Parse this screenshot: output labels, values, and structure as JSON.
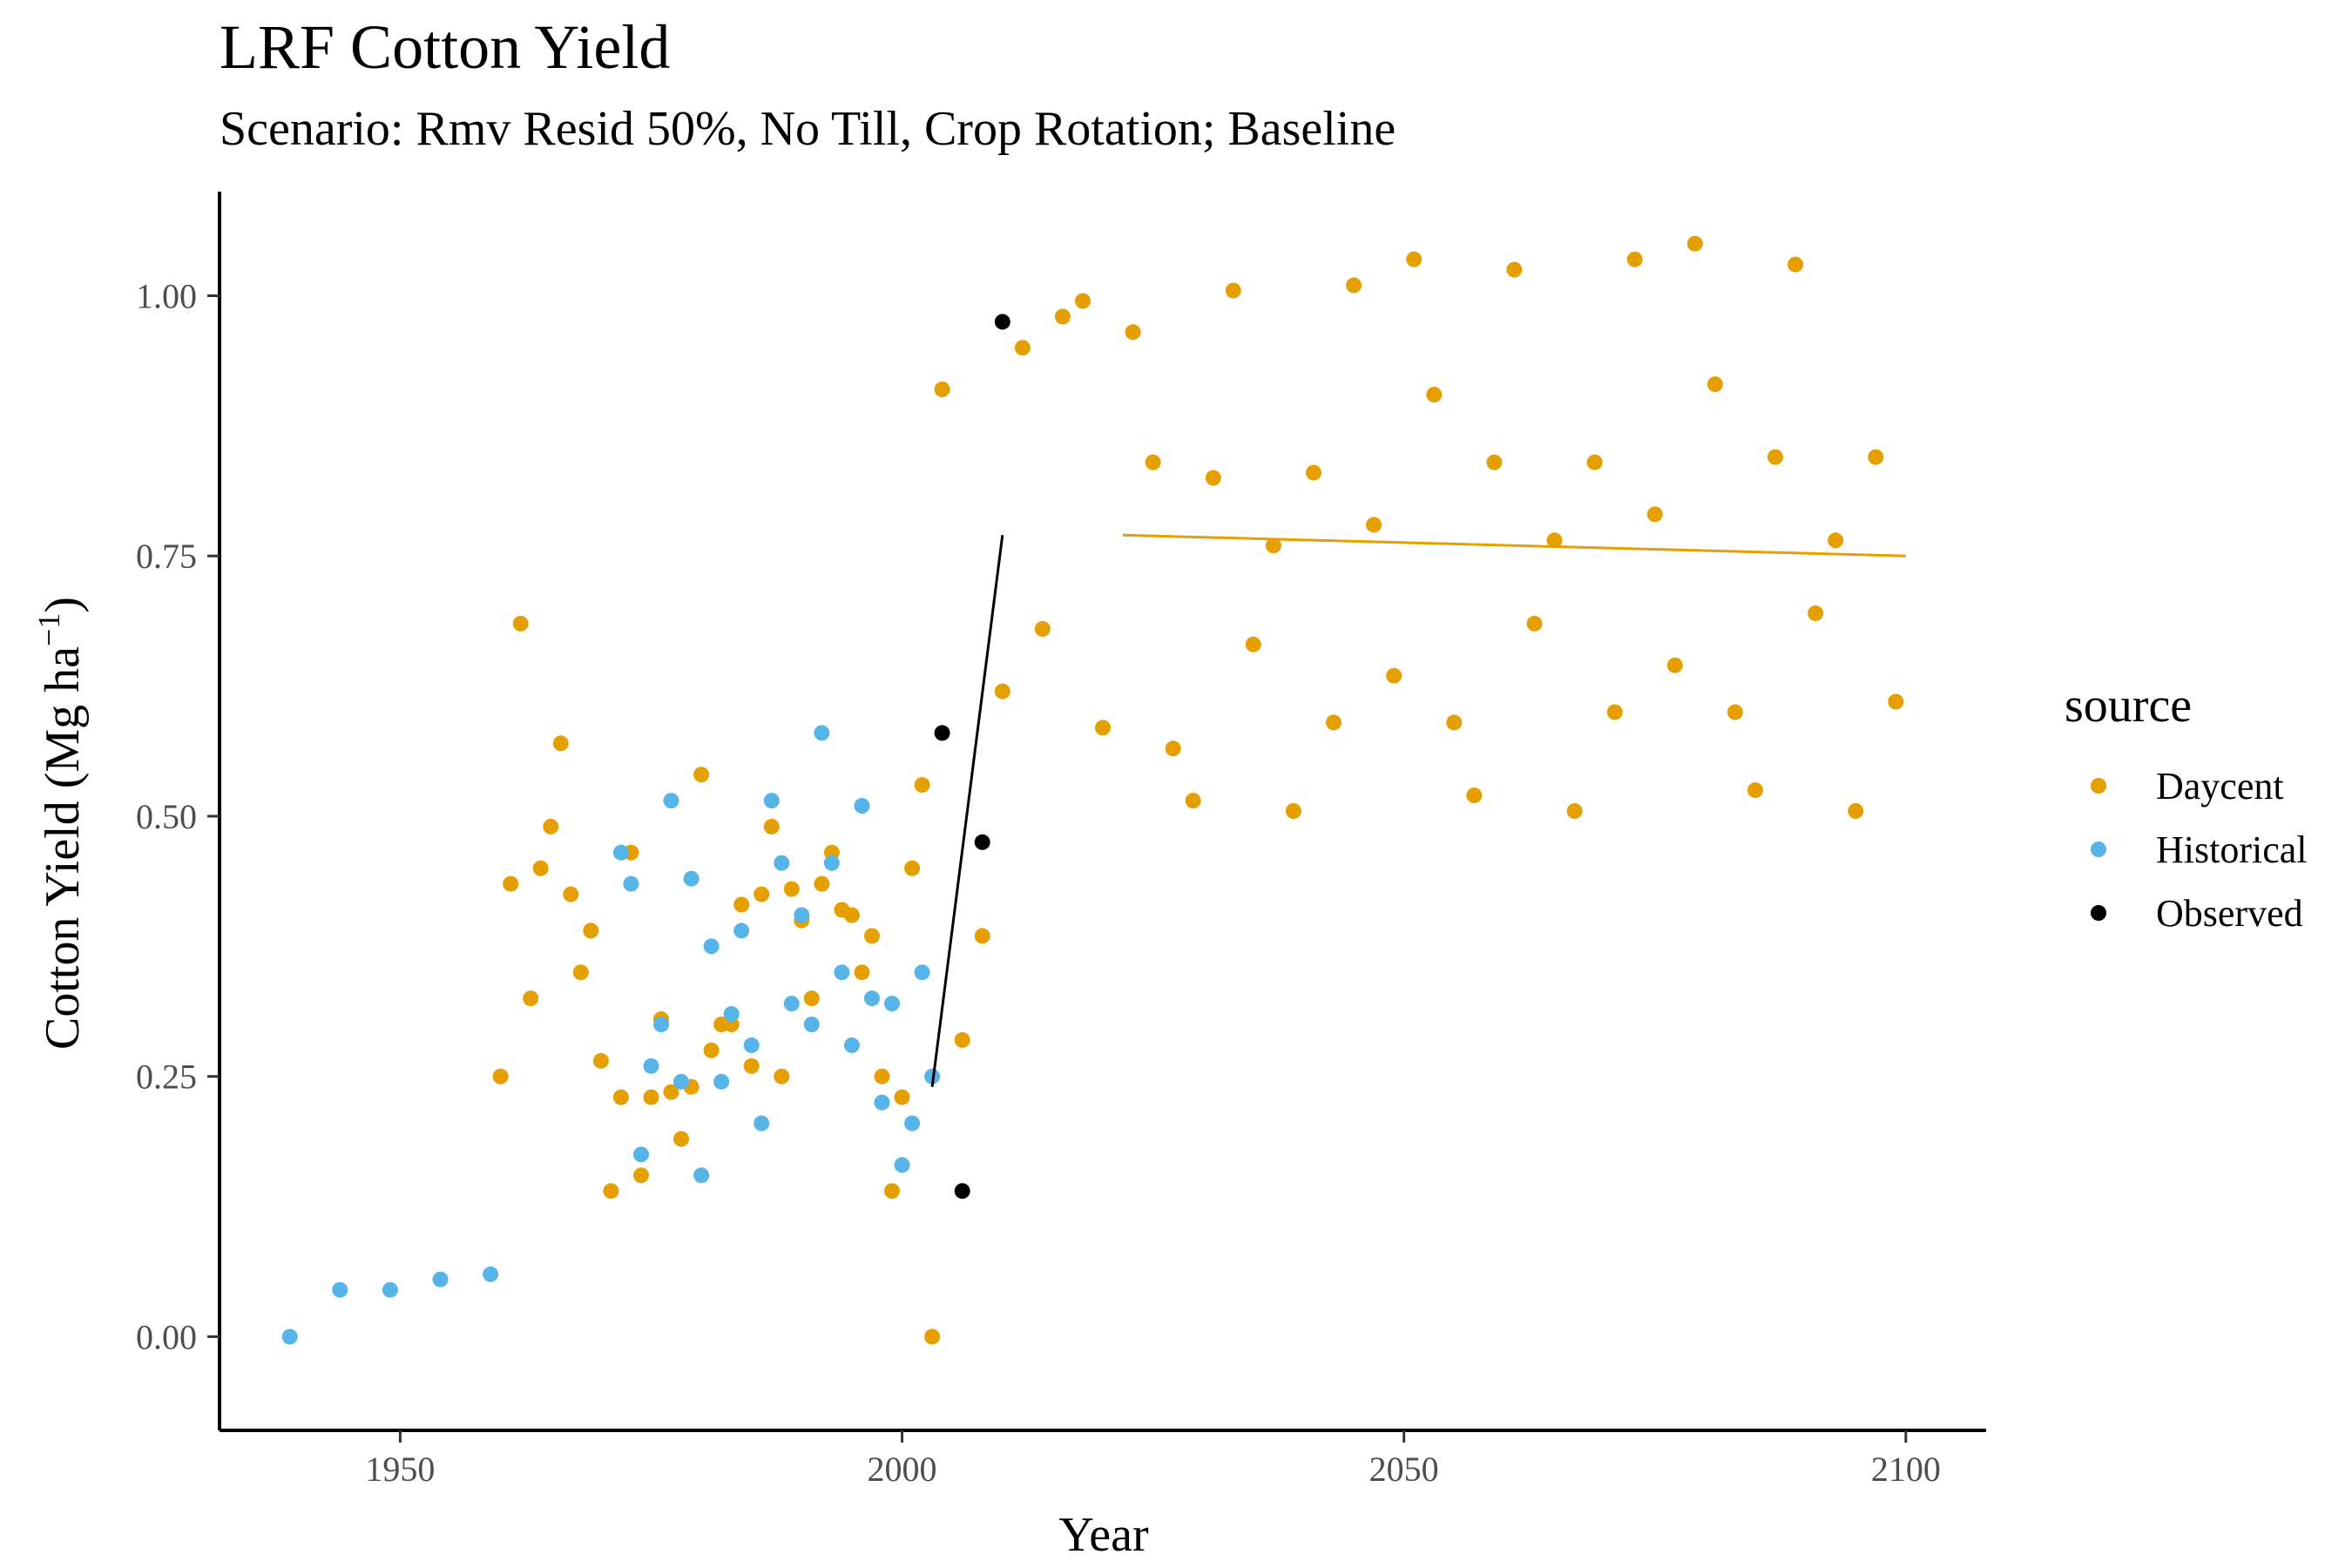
{
  "chart_data": {
    "type": "scatter",
    "title": "LRF Cotton Yield",
    "subtitle": "Scenario: Rmv Resid 50%, No Till, Crop Rotation; Baseline",
    "xlabel": "Year",
    "ylabel_main": "Cotton Yield (Mg ha",
    "ylabel_sup": "−1",
    "ylabel_close": ")",
    "xlim": [
      1932,
      2108
    ],
    "ylim": [
      -0.09,
      1.1
    ],
    "xticks": [
      1950,
      2000,
      2050,
      2100
    ],
    "xtick_labels": [
      "1950",
      "2000",
      "2050",
      "2100"
    ],
    "yticks": [
      0,
      0.25,
      0.5,
      0.75,
      1
    ],
    "ytick_labels": [
      "0.00",
      "0.25",
      "0.50",
      "0.75",
      "1.00"
    ],
    "grid": false,
    "legend": {
      "title": "source",
      "placement": "right",
      "entries": [
        "Daycent",
        "Historical",
        "Observed"
      ]
    },
    "series": [
      {
        "name": "Daycent",
        "color": "#E69F00",
        "points": [
          [
            1960,
            0.25
          ],
          [
            1961,
            0.435
          ],
          [
            1962,
            0.685
          ],
          [
            1963,
            0.325
          ],
          [
            1964,
            0.45
          ],
          [
            1965,
            0.49
          ],
          [
            1966,
            0.57
          ],
          [
            1967,
            0.425
          ],
          [
            1968,
            0.35
          ],
          [
            1969,
            0.39
          ],
          [
            1970,
            0.265
          ],
          [
            1971,
            0.14
          ],
          [
            1972,
            0.23
          ],
          [
            1973,
            0.465
          ],
          [
            1974,
            0.155
          ],
          [
            1975,
            0.23
          ],
          [
            1976,
            0.305
          ],
          [
            1977,
            0.235
          ],
          [
            1978,
            0.19
          ],
          [
            1979,
            0.24
          ],
          [
            1980,
            0.54
          ],
          [
            1981,
            0.275
          ],
          [
            1982,
            0.3
          ],
          [
            1983,
            0.3
          ],
          [
            1984,
            0.415
          ],
          [
            1985,
            0.26
          ],
          [
            1986,
            0.425
          ],
          [
            1987,
            0.49
          ],
          [
            1988,
            0.25
          ],
          [
            1989,
            0.43
          ],
          [
            1990,
            0.4
          ],
          [
            1991,
            0.325
          ],
          [
            1992,
            0.435
          ],
          [
            1993,
            0.465
          ],
          [
            1994,
            0.41
          ],
          [
            1995,
            0.405
          ],
          [
            1996,
            0.35
          ],
          [
            1997,
            0.385
          ],
          [
            1998,
            0.25
          ],
          [
            1999,
            0.14
          ],
          [
            2000,
            0.23
          ],
          [
            2001,
            0.45
          ],
          [
            2002,
            0.53
          ],
          [
            2003,
            0.0
          ],
          [
            2004,
            0.91
          ],
          [
            2006,
            0.285
          ],
          [
            2008,
            0.385
          ],
          [
            2010,
            0.62
          ],
          [
            2012,
            0.95
          ],
          [
            2014,
            0.68
          ],
          [
            2016,
            0.98
          ],
          [
            2018,
            0.995
          ],
          [
            2020,
            0.585
          ],
          [
            2023,
            0.965
          ],
          [
            2025,
            0.84
          ],
          [
            2027,
            0.565
          ],
          [
            2029,
            0.515
          ],
          [
            2031,
            0.825
          ],
          [
            2033,
            1.005
          ],
          [
            2035,
            0.665
          ],
          [
            2037,
            0.76
          ],
          [
            2039,
            0.505
          ],
          [
            2041,
            0.83
          ],
          [
            2043,
            0.59
          ],
          [
            2045,
            1.01
          ],
          [
            2047,
            0.78
          ],
          [
            2049,
            0.635
          ],
          [
            2051,
            1.035
          ],
          [
            2053,
            0.905
          ],
          [
            2055,
            0.59
          ],
          [
            2057,
            0.52
          ],
          [
            2059,
            0.84
          ],
          [
            2061,
            1.025
          ],
          [
            2063,
            0.685
          ],
          [
            2065,
            0.765
          ],
          [
            2067,
            0.505
          ],
          [
            2069,
            0.84
          ],
          [
            2071,
            0.6
          ],
          [
            2073,
            1.035
          ],
          [
            2075,
            0.79
          ],
          [
            2077,
            0.645
          ],
          [
            2079,
            1.05
          ],
          [
            2081,
            0.915
          ],
          [
            2083,
            0.6
          ],
          [
            2085,
            0.525
          ],
          [
            2087,
            0.845
          ],
          [
            2089,
            1.03
          ],
          [
            2091,
            0.695
          ],
          [
            2093,
            0.765
          ],
          [
            2095,
            0.505
          ],
          [
            2097,
            0.845
          ],
          [
            2099,
            0.61
          ]
        ],
        "trend": [
          [
            2022,
            0.77
          ],
          [
            2100,
            0.75
          ]
        ]
      },
      {
        "name": "Historical",
        "color": "#56B4E9",
        "points": [
          [
            1939,
            0.0
          ],
          [
            1944,
            0.045
          ],
          [
            1949,
            0.045
          ],
          [
            1954,
            0.055
          ],
          [
            1959,
            0.06
          ],
          [
            1972,
            0.465
          ],
          [
            1973,
            0.435
          ],
          [
            1974,
            0.175
          ],
          [
            1975,
            0.26
          ],
          [
            1976,
            0.3
          ],
          [
            1977,
            0.515
          ],
          [
            1978,
            0.245
          ],
          [
            1979,
            0.44
          ],
          [
            1980,
            0.155
          ],
          [
            1981,
            0.375
          ],
          [
            1982,
            0.245
          ],
          [
            1983,
            0.31
          ],
          [
            1984,
            0.39
          ],
          [
            1985,
            0.28
          ],
          [
            1986,
            0.205
          ],
          [
            1987,
            0.515
          ],
          [
            1988,
            0.455
          ],
          [
            1989,
            0.32
          ],
          [
            1990,
            0.405
          ],
          [
            1991,
            0.3
          ],
          [
            1992,
            0.58
          ],
          [
            1993,
            0.455
          ],
          [
            1994,
            0.35
          ],
          [
            1995,
            0.28
          ],
          [
            1996,
            0.51
          ],
          [
            1997,
            0.325
          ],
          [
            1998,
            0.225
          ],
          [
            1999,
            0.32
          ],
          [
            2000,
            0.165
          ],
          [
            2001,
            0.205
          ],
          [
            2002,
            0.35
          ],
          [
            2003,
            0.25
          ]
        ]
      },
      {
        "name": "Observed",
        "color": "#000000",
        "points": [
          [
            2004,
            0.58
          ],
          [
            2006,
            0.14
          ],
          [
            2008,
            0.475
          ],
          [
            2010,
            0.975
          ]
        ],
        "trend": [
          [
            2003,
            0.24
          ],
          [
            2010,
            0.77
          ]
        ]
      }
    ]
  }
}
